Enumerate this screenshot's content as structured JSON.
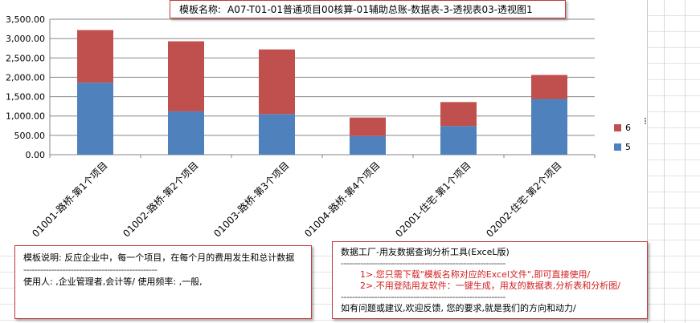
{
  "title": {
    "label": "模板名称:",
    "text": "A07-T01-01普通项目00核算-01辅助总账-数据表-3-透视表03-透视图1"
  },
  "chart_data": {
    "type": "bar",
    "stacked": true,
    "categories": [
      "01001-路桥-第1个项目",
      "01002-路桥-第2个项目",
      "01003-路桥-第3个项目",
      "01004-路桥-第4个项目",
      "02001-住宅-第1个项目",
      "02002-住宅-第2个项目"
    ],
    "series": [
      {
        "name": "5",
        "color": "#4f81bd",
        "values": [
          1860,
          1120,
          1050,
          480,
          740,
          1440
        ]
      },
      {
        "name": "6",
        "color": "#c0504d",
        "values": [
          1360,
          1810,
          1670,
          480,
          620,
          620
        ]
      }
    ],
    "ylim": [
      0,
      3500
    ],
    "yticks": [
      "0.00",
      "500.00",
      "1,000.00",
      "1,500.00",
      "2,000.00",
      "2,500.00",
      "3,000.00",
      "3,500.00"
    ],
    "grid": true,
    "legend_position": "right"
  },
  "description": {
    "line1": "模板说明: 反应企业中，每一个项目，在每个月的费用发生和总计数据",
    "separator": "------------------------------------------------",
    "line2": "使用人: ,企业管理者,会计等/      使用频率: ,一般,"
  },
  "info": {
    "title": "数据工厂-用友数据查询分析工具(ExceL版)",
    "separator1": "-----------------------------------------------------------",
    "point1": "1>.您只需下载\"模板名称对应的Excel文件\",即可直接使用/",
    "point2": "2>.不用登陆用友软件：一键生成，用友的数据表,分析表和分析图/",
    "separator2": "-----------------------------------------------------------",
    "footer": "如有问题或建议,欢迎反馈, 您的要求,就是我们的方向和动力/"
  }
}
